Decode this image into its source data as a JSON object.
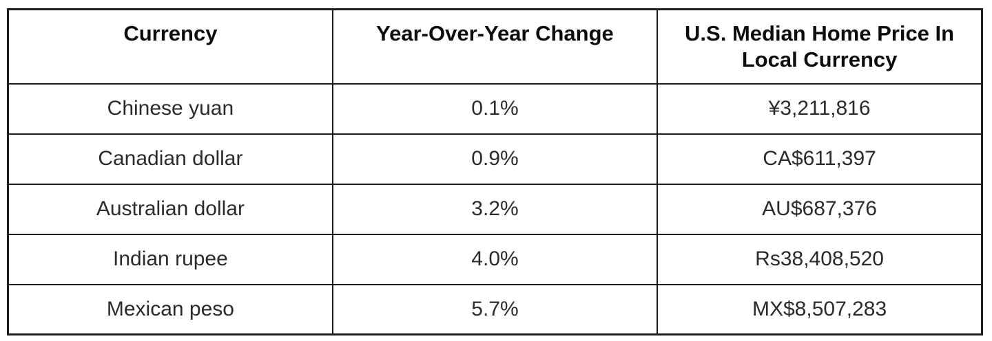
{
  "table": {
    "columns": [
      {
        "label": "Currency"
      },
      {
        "label": "Year-Over-Year Change"
      },
      {
        "label": "U.S. Median Home Price In Local Currency"
      }
    ],
    "rows": [
      {
        "currency": "Chinese yuan",
        "yoy_change": "0.1%",
        "price": "¥3,211,816"
      },
      {
        "currency": "Canadian dollar",
        "yoy_change": "0.9%",
        "price": "CA$611,397"
      },
      {
        "currency": "Australian dollar",
        "yoy_change": "3.2%",
        "price": "AU$687,376"
      },
      {
        "currency": "Indian rupee",
        "yoy_change": "4.0%",
        "price": "Rs38,408,520"
      },
      {
        "currency": "Mexican peso",
        "yoy_change": "5.7%",
        "price": "MX$8,507,283"
      }
    ]
  },
  "chart_data": {
    "type": "table",
    "title": "",
    "columns": [
      "Currency",
      "Year-Over-Year Change",
      "U.S. Median Home Price In Local Currency"
    ],
    "rows": [
      [
        "Chinese yuan",
        "0.1%",
        "¥3,211,816"
      ],
      [
        "Canadian dollar",
        "0.9%",
        "CA$611,397"
      ],
      [
        "Australian dollar",
        "3.2%",
        "AU$687,376"
      ],
      [
        "Indian rupee",
        "4.0%",
        "Rs38,408,520"
      ],
      [
        "Mexican peso",
        "5.7%",
        "MX$8,507,283"
      ]
    ],
    "yoy_change_values_pct": [
      0.1,
      0.9,
      3.2,
      4.0,
      5.7
    ],
    "price_values": [
      3211816,
      611397,
      687376,
      38408520,
      8507283
    ]
  },
  "colors": {
    "border": "#1c1c1c",
    "header_text": "#0c0c0c",
    "body_text": "#2b2b2b",
    "background": "#ffffff"
  }
}
